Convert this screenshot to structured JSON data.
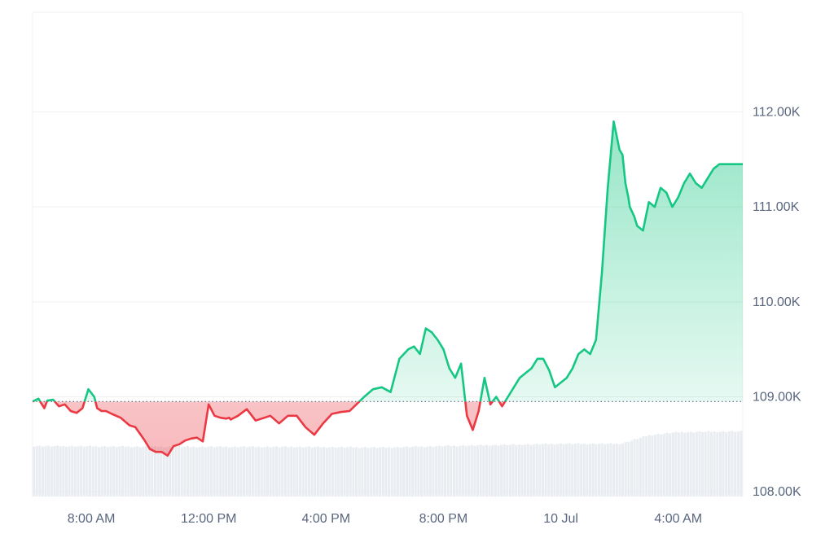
{
  "colors": {
    "up": "#16c784",
    "down": "#ea3943",
    "up_fill": "#16c784",
    "down_fill": "#ea3943",
    "grid": "#eef0f3",
    "axis_text": "#58667e",
    "baseline": "#58667e",
    "volume": "#e9ecf0"
  },
  "chart_data": {
    "type": "line",
    "title": "",
    "xlabel": "",
    "ylabel": "",
    "x_unit": "hours",
    "x_ticks": [
      {
        "x": 8,
        "label": "8:00 AM"
      },
      {
        "x": 12,
        "label": "12:00 PM"
      },
      {
        "x": 16,
        "label": "4:00 PM"
      },
      {
        "x": 20,
        "label": "8:00 PM"
      },
      {
        "x": 24,
        "label": "10 Jul"
      },
      {
        "x": 28,
        "label": "4:00 AM"
      }
    ],
    "y_ticks": [
      {
        "y": 108000,
        "label": "108.00K"
      },
      {
        "y": 109000,
        "label": "109.00K"
      },
      {
        "y": 110000,
        "label": "110.00K"
      },
      {
        "y": 111000,
        "label": "111.00K"
      },
      {
        "y": 112000,
        "label": "112.00K"
      }
    ],
    "xlim": [
      6,
      30.2
    ],
    "ylim": [
      107950,
      113050
    ],
    "baseline": 108950,
    "grid": true,
    "series": [
      {
        "x": [
          6.0,
          6.2,
          6.4,
          6.5,
          6.7,
          6.9,
          7.1,
          7.3,
          7.5,
          7.7,
          7.9,
          8.1,
          8.2,
          8.35,
          8.5,
          8.7,
          9.0,
          9.3,
          9.5,
          9.8,
          10.0,
          10.2,
          10.4,
          10.6,
          10.8,
          11.0,
          11.2,
          11.4,
          11.6,
          11.8,
          12.0,
          12.2,
          12.4,
          12.6,
          12.7,
          12.75,
          13.0,
          13.3,
          13.6,
          13.9,
          14.1,
          14.4,
          14.7,
          15.0,
          15.3,
          15.6,
          15.9,
          16.2,
          16.5,
          16.8,
          17.0,
          17.3,
          17.6,
          17.9,
          18.2,
          18.5,
          18.8,
          19.0,
          19.2,
          19.4,
          19.6,
          19.8,
          20.0,
          20.2,
          20.4,
          20.6,
          20.8,
          21.0,
          21.2,
          21.4,
          21.6,
          21.8,
          22.0,
          22.2,
          22.4,
          22.6,
          22.8,
          23.0,
          23.2,
          23.4,
          23.6,
          23.8,
          24.0,
          24.2,
          24.4,
          24.6,
          24.8,
          25.0,
          25.2,
          25.4,
          25.6,
          25.8,
          26.0,
          26.1,
          26.2,
          26.3,
          26.35,
          26.5,
          26.6,
          26.8,
          27.0,
          27.2,
          27.4,
          27.6,
          27.8,
          28.0,
          28.2,
          28.4,
          28.6,
          28.8,
          29.0,
          29.2,
          29.4,
          29.6,
          29.8,
          30.0,
          30.2
        ],
        "y": [
          108950,
          108980,
          108880,
          108960,
          108970,
          108900,
          108920,
          108850,
          108830,
          108880,
          109080,
          109000,
          108880,
          108850,
          108850,
          108820,
          108780,
          108700,
          108680,
          108550,
          108450,
          108420,
          108420,
          108380,
          108480,
          108500,
          108540,
          108560,
          108570,
          108530,
          108920,
          108800,
          108780,
          108770,
          108780,
          108760,
          108800,
          108870,
          108750,
          108780,
          108800,
          108720,
          108800,
          108800,
          108680,
          108600,
          108720,
          108820,
          108840,
          108850,
          108910,
          109000,
          109080,
          109100,
          109050,
          109400,
          109500,
          109530,
          109450,
          109720,
          109680,
          109600,
          109500,
          109300,
          109200,
          109350,
          108800,
          108650,
          108850,
          109200,
          108920,
          109000,
          108900,
          109000,
          109100,
          109200,
          109250,
          109300,
          109400,
          109400,
          109280,
          109100,
          109150,
          109200,
          109300,
          109450,
          109500,
          109450,
          109600,
          110300,
          111200,
          111900,
          111600,
          111550,
          111250,
          111100,
          111000,
          110900,
          110800,
          110750,
          111050,
          111000,
          111200,
          111150,
          111000,
          111100,
          111250,
          111350,
          111250,
          111200,
          111300,
          111400,
          111450,
          111450,
          111450,
          111450,
          111450
        ]
      }
    ],
    "volume": {
      "x_start": 6.0,
      "x_end": 30.2,
      "count": 240,
      "relative_levels": [
        {
          "x": 6,
          "v": 0.69
        },
        {
          "x": 10,
          "v": 0.68
        },
        {
          "x": 14,
          "v": 0.68
        },
        {
          "x": 18,
          "v": 0.67
        },
        {
          "x": 20,
          "v": 0.69
        },
        {
          "x": 24,
          "v": 0.72
        },
        {
          "x": 26,
          "v": 0.72
        },
        {
          "x": 26.5,
          "v": 0.78
        },
        {
          "x": 27,
          "v": 0.84
        },
        {
          "x": 28,
          "v": 0.88
        },
        {
          "x": 30.2,
          "v": 0.89
        }
      ]
    }
  }
}
